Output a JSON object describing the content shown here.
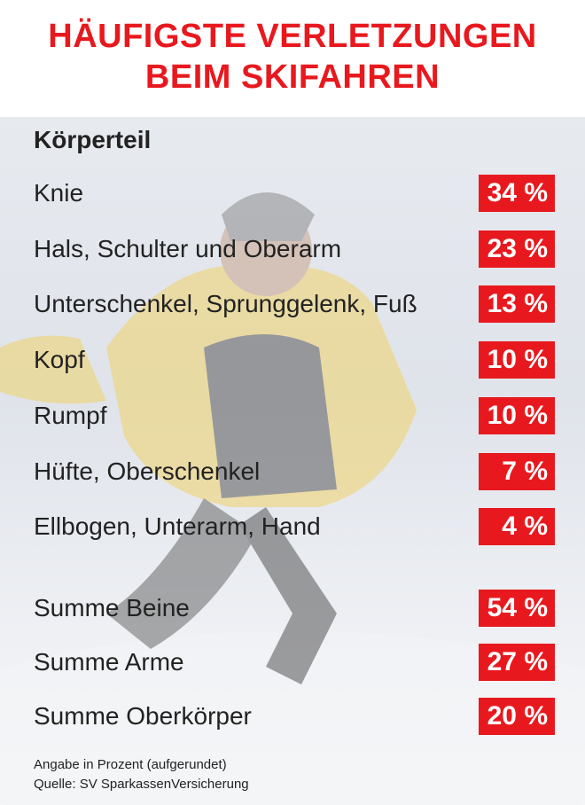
{
  "title_line1": "HÄUFIGSTE VERLETZUNGEN",
  "title_line2": "BEIM SKIFAHREN",
  "column_header": "Körperteil",
  "colors": {
    "accent": "#e8191e",
    "text": "#222222"
  },
  "chart_data": {
    "type": "table",
    "title": "HÄUFIGSTE VERLETZUNGEN BEIM SKIFAHREN",
    "header": "Körperteil",
    "unit": "%",
    "rows": [
      {
        "label": "Knie",
        "value": 34,
        "display": "34 %"
      },
      {
        "label": "Hals, Schulter und Oberarm",
        "value": 23,
        "display": "23 %"
      },
      {
        "label": "Unterschenkel, Sprunggelenk, Fuß",
        "value": 13,
        "display": "13 %"
      },
      {
        "label": "Kopf",
        "value": 10,
        "display": "10 %"
      },
      {
        "label": "Rumpf",
        "value": 10,
        "display": "10 %"
      },
      {
        "label": "Hüfte, Oberschenkel",
        "value": 7,
        "display": "7 %"
      },
      {
        "label": "Ellbogen, Unterarm, Hand",
        "value": 4,
        "display": "4 %"
      }
    ],
    "summary_rows": [
      {
        "label": "Summe Beine",
        "value": 54,
        "display": "54 %"
      },
      {
        "label": "Summe Arme",
        "value": 27,
        "display": "27 %"
      },
      {
        "label": "Summe Oberkörper",
        "value": 20,
        "display": "20 %"
      }
    ]
  },
  "footnote_line1": "Angabe in Prozent (aufgerundet)",
  "footnote_line2": "Quelle: SV SparkassenVersicherung"
}
